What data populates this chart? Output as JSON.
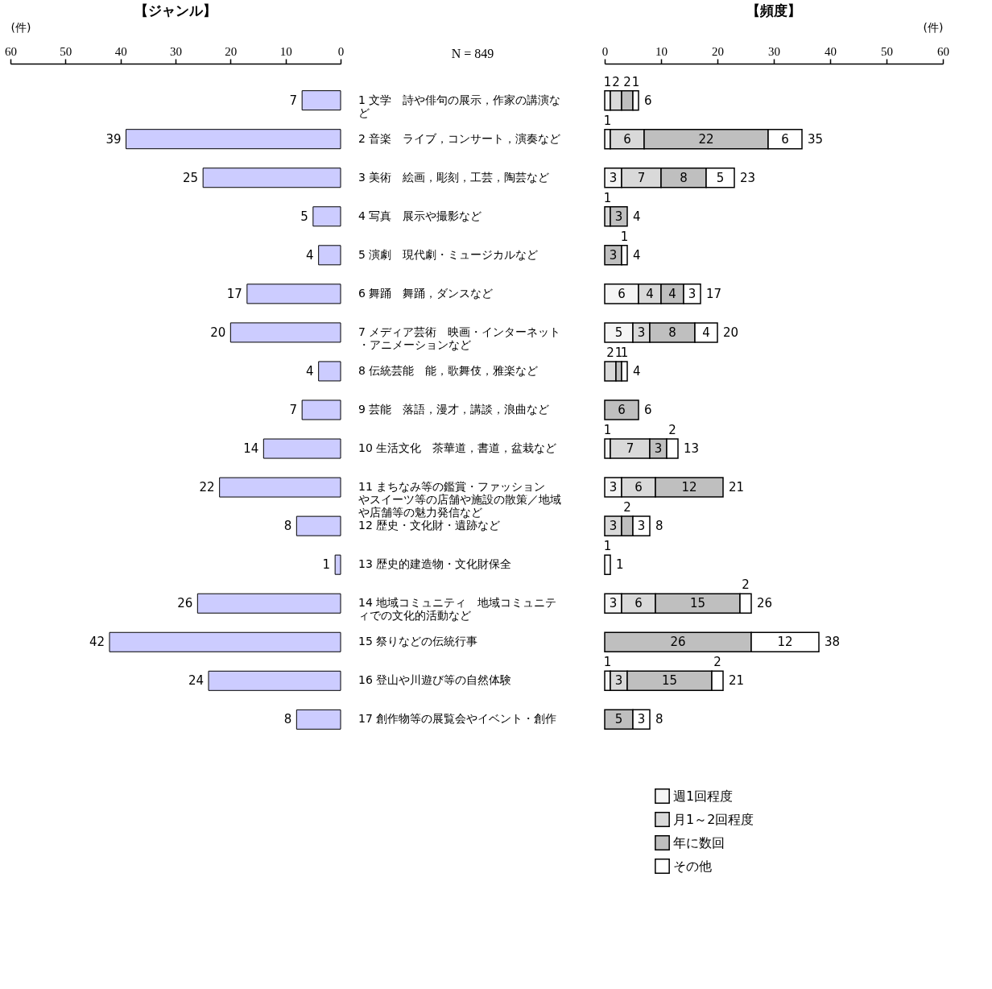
{
  "chart_data": [
    {
      "type": "bar",
      "orientation": "horizontal",
      "title": "【ジャンル】",
      "xlabel": "(件)",
      "annotations": [
        "N = 849"
      ],
      "color": "#ccccff",
      "xlim": [
        60,
        0
      ],
      "xticks": [
        60,
        50,
        40,
        30,
        20,
        10,
        0
      ],
      "grid": false,
      "data_labels": true,
      "categories": [
        "1 文学　詩や俳句の展示，作家の講演など",
        "2 音楽　ライブ，コンサート，演奏など",
        "3 美術　絵画，彫刻，工芸，陶芸など",
        "4 写真　展示や撮影など",
        "5 演劇　現代劇・ミュージカルなど",
        "6 舞踊　舞踊，ダンスなど",
        "7 メディア芸術　映画・インターネット・アニメーションなど",
        "8 伝統芸能　能，歌舞伎，雅楽など",
        "9 芸能　落語，漫才，講談，浪曲など",
        "10 生活文化　茶華道，書道，盆栽など",
        "11 まちなみ等の鑑賞・ファッションやスイーツ等の店舗や施設の散策／地域や店舗等の魅力発信など",
        "12 歴史・文化財・遺跡など",
        "13 歴史的建造物・文化財保全",
        "14 地域コミュニティ　地域コミュニティでの文化的活動など",
        "15 祭りなどの伝統行事",
        "16 登山や川遊び等の自然体験",
        "17 創作物等の展覧会やイベント・創作"
      ],
      "values": [
        7,
        39,
        25,
        5,
        4,
        17,
        20,
        4,
        7,
        14,
        22,
        8,
        1,
        26,
        42,
        24,
        8
      ]
    },
    {
      "type": "bar",
      "orientation": "horizontal",
      "stacked": true,
      "title": "【頻度】",
      "xlabel": "(件)",
      "xlim": [
        0,
        60
      ],
      "xticks": [
        0,
        10,
        20,
        30,
        40,
        50,
        60
      ],
      "grid": false,
      "data_labels": true,
      "legend": "bottom",
      "tick_labels": "x",
      "categories": [
        "1 文学　詩や俳句の展示，作家の講演など",
        "2 音楽　ライブ，コンサート，演奏など",
        "3 美術　絵画，彫刻，工芸，陶芸など",
        "4 写真　展示や撮影など",
        "5 演劇　現代劇・ミュージカルなど",
        "6 舞踊　舞踊，ダンスなど",
        "7 メディア芸術　映画・インターネット・アニメーションなど",
        "8 伝統芸能　能，歌舞伎，雅楽など",
        "9 芸能　落語，漫才，講談，浪曲など",
        "10 生活文化　茶華道，書道，盆栽など",
        "11 まちなみ等の鑑賞・ファッションやスイーツ等の店舗や施設の散策／地域や店舗等の魅力発信など",
        "12 歴史・文化財・遺跡など",
        "13 歴史的建造物・文化財保全",
        "14 地域コミュニティ　地域コミュニティでの文化的活動など",
        "15 祭りなどの伝統行事",
        "16 登山や川遊び等の自然体験",
        "17 創作物等の展覧会やイベント・創作"
      ],
      "series": [
        {
          "name": "週1回程度",
          "color": "#f5f5f5",
          "values": [
            1,
            1,
            3,
            null,
            null,
            6,
            5,
            null,
            null,
            1,
            3,
            null,
            null,
            3,
            null,
            1,
            null
          ]
        },
        {
          "name": "月1～2回程度",
          "color": "#d9d9d9",
          "values": [
            2,
            6,
            7,
            1,
            null,
            4,
            3,
            2,
            null,
            7,
            6,
            3,
            null,
            6,
            null,
            3,
            null
          ]
        },
        {
          "name": "年に数回",
          "color": "#bfbfbf",
          "values": [
            2,
            22,
            8,
            3,
            3,
            4,
            8,
            1,
            6,
            3,
            12,
            2,
            null,
            15,
            26,
            15,
            5
          ]
        },
        {
          "name": "その他",
          "color": "#ffffff",
          "values": [
            1,
            6,
            5,
            null,
            1,
            3,
            4,
            1,
            null,
            2,
            null,
            3,
            1,
            2,
            12,
            2,
            3
          ]
        }
      ],
      "totals": [
        "6",
        "35",
        "23",
        "4",
        "4",
        "17",
        "20",
        "4",
        "6",
        "13",
        "21",
        "8",
        "1",
        "26",
        "38",
        "21",
        "8"
      ]
    }
  ]
}
